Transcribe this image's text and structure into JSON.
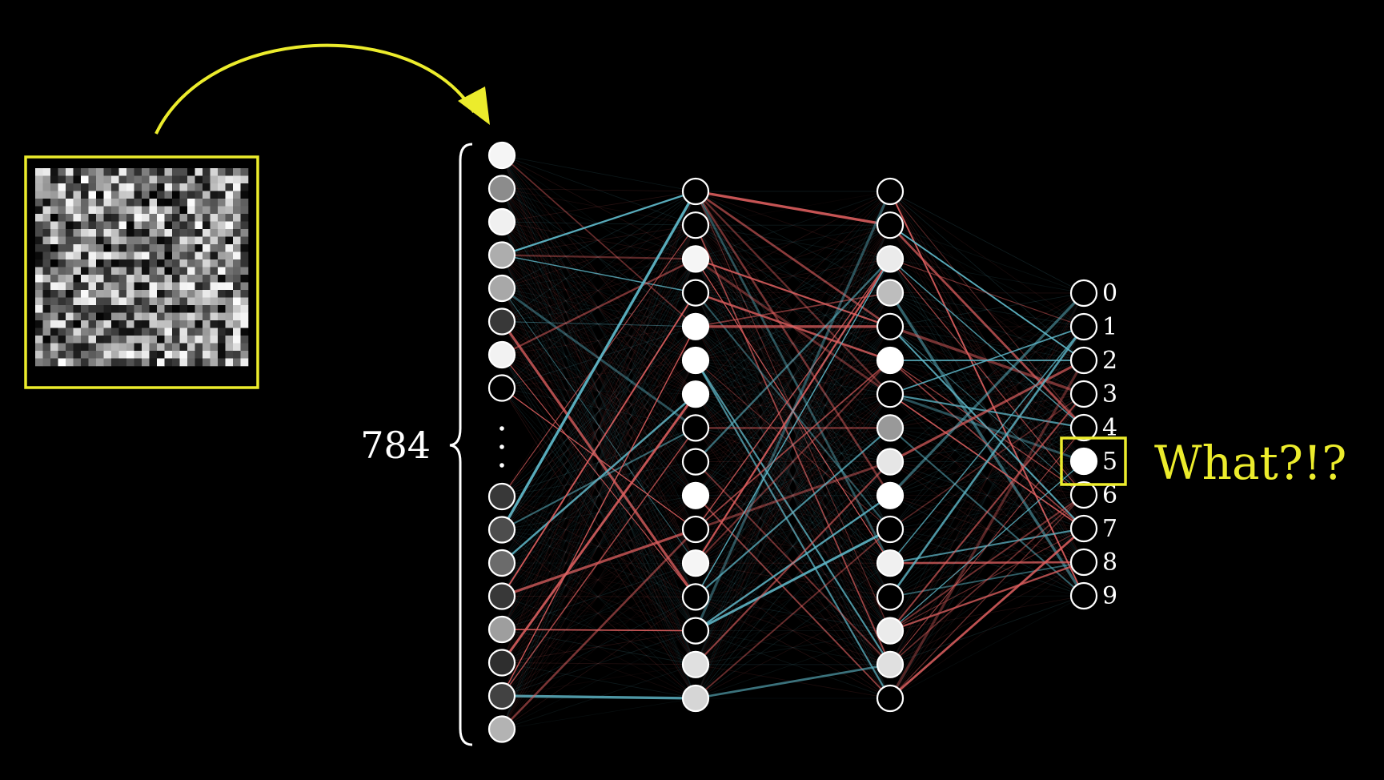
{
  "input": {
    "count_label": "784",
    "shown_activations_top": [
      0.96,
      0.55,
      0.94,
      0.68,
      0.66,
      0.22,
      0.95,
      0.0
    ],
    "shown_activations_bottom": [
      0.22,
      0.3,
      0.42,
      0.22,
      0.62,
      0.18,
      0.26,
      0.7
    ]
  },
  "hidden1": {
    "activations": [
      0.0,
      0.0,
      0.96,
      0.0,
      1.0,
      1.0,
      1.0,
      0.0,
      0.0,
      1.0,
      0.0,
      0.96,
      0.0,
      0.0,
      0.88,
      0.84
    ]
  },
  "hidden2": {
    "activations": [
      0.0,
      0.0,
      0.92,
      0.74,
      0.0,
      1.0,
      0.0,
      0.6,
      0.9,
      1.0,
      0.0,
      0.94,
      0.0,
      0.92,
      0.88,
      0.0
    ]
  },
  "output": {
    "labels": [
      "0",
      "1",
      "2",
      "3",
      "4",
      "5",
      "6",
      "7",
      "8",
      "9"
    ],
    "activations": [
      0,
      0,
      0,
      0,
      0,
      1,
      0,
      0,
      0,
      0
    ],
    "highlighted_index": 5
  },
  "annotation": {
    "text": "What?!?"
  },
  "colors": {
    "accent": "#ecec2c",
    "positive_weight": "#5fb8c9",
    "negative_weight": "#e06060",
    "neuron_stroke": "#ffffff"
  }
}
